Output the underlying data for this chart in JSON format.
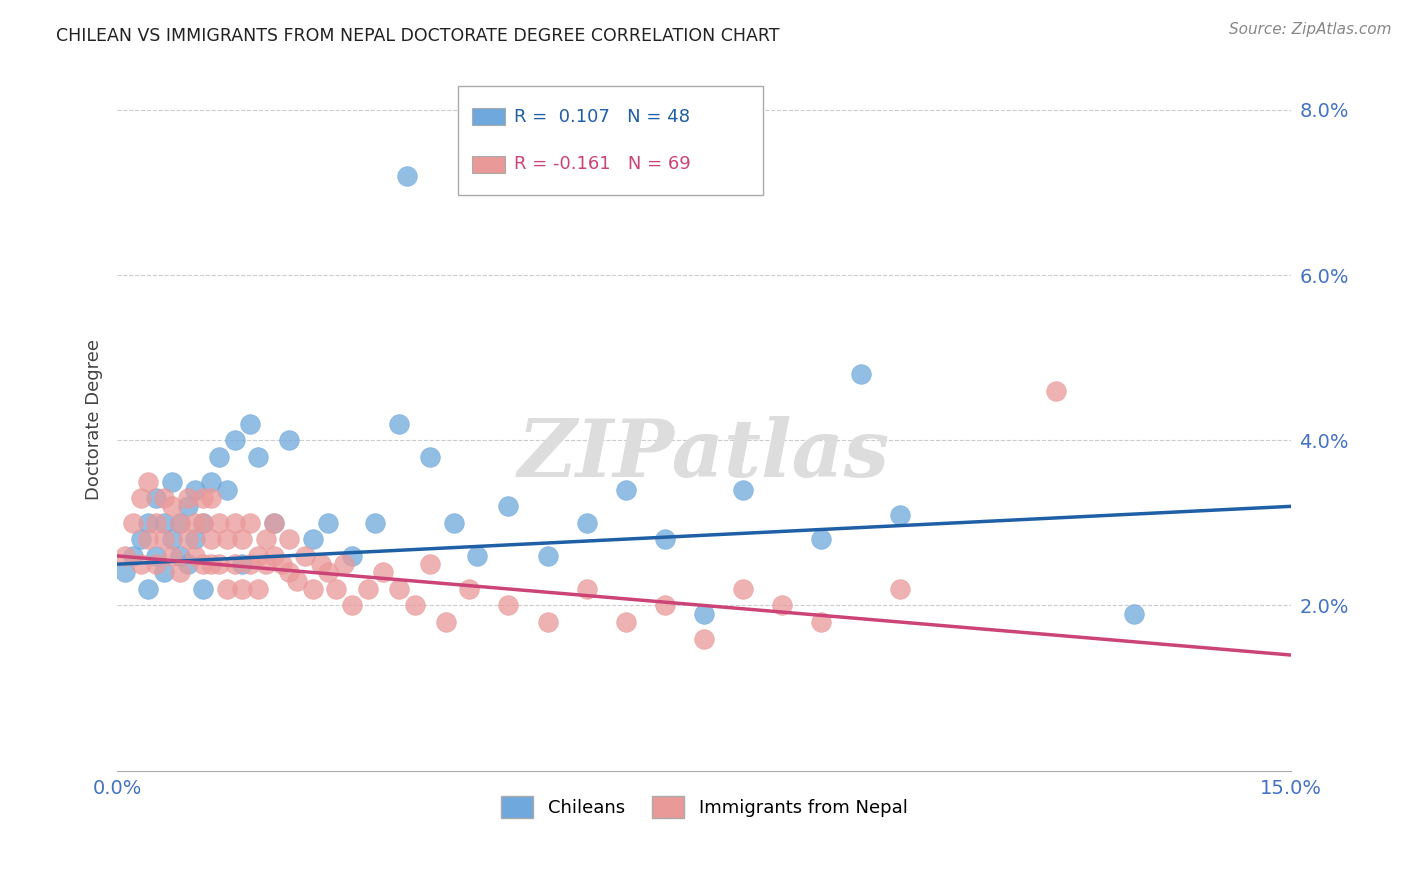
{
  "title": "CHILEAN VS IMMIGRANTS FROM NEPAL DOCTORATE DEGREE CORRELATION CHART",
  "source": "Source: ZipAtlas.com",
  "ylabel": "Doctorate Degree",
  "xlim": [
    0.0,
    0.15
  ],
  "ylim": [
    0.0,
    0.085
  ],
  "xticks": [
    0.0,
    0.15
  ],
  "yticks": [
    0.02,
    0.04,
    0.06,
    0.08
  ],
  "chilean_R": 0.107,
  "chilean_N": 48,
  "nepal_R": -0.161,
  "nepal_N": 69,
  "chilean_color": "#6fa8dc",
  "nepal_color": "#ea9999",
  "trend_chilean_color": "#1f5fa6",
  "trend_nepal_color": "#cc4477",
  "background_color": "#ffffff",
  "grid_color": "#cccccc",
  "tick_color": "#4472c4",
  "legend_box_color": "#dddddd",
  "chilean_x": [
    0.001,
    0.002,
    0.003,
    0.004,
    0.004,
    0.005,
    0.005,
    0.006,
    0.006,
    0.007,
    0.007,
    0.008,
    0.008,
    0.009,
    0.009,
    0.01,
    0.01,
    0.011,
    0.011,
    0.012,
    0.013,
    0.014,
    0.015,
    0.016,
    0.017,
    0.018,
    0.02,
    0.022,
    0.025,
    0.027,
    0.03,
    0.033,
    0.036,
    0.037,
    0.04,
    0.043,
    0.046,
    0.05,
    0.055,
    0.06,
    0.065,
    0.07,
    0.075,
    0.08,
    0.09,
    0.095,
    0.1,
    0.13
  ],
  "chilean_y": [
    0.024,
    0.026,
    0.028,
    0.03,
    0.022,
    0.033,
    0.026,
    0.03,
    0.024,
    0.035,
    0.028,
    0.026,
    0.03,
    0.025,
    0.032,
    0.034,
    0.028,
    0.03,
    0.022,
    0.035,
    0.038,
    0.034,
    0.04,
    0.025,
    0.042,
    0.038,
    0.03,
    0.04,
    0.028,
    0.03,
    0.026,
    0.03,
    0.042,
    0.072,
    0.038,
    0.03,
    0.026,
    0.032,
    0.026,
    0.03,
    0.034,
    0.028,
    0.019,
    0.034,
    0.028,
    0.048,
    0.031,
    0.019
  ],
  "nepal_x": [
    0.001,
    0.002,
    0.003,
    0.003,
    0.004,
    0.004,
    0.005,
    0.005,
    0.006,
    0.006,
    0.007,
    0.007,
    0.008,
    0.008,
    0.009,
    0.009,
    0.01,
    0.01,
    0.011,
    0.011,
    0.011,
    0.012,
    0.012,
    0.012,
    0.013,
    0.013,
    0.014,
    0.014,
    0.015,
    0.015,
    0.016,
    0.016,
    0.017,
    0.017,
    0.018,
    0.018,
    0.019,
    0.019,
    0.02,
    0.02,
    0.021,
    0.022,
    0.022,
    0.023,
    0.024,
    0.025,
    0.026,
    0.027,
    0.028,
    0.029,
    0.03,
    0.032,
    0.034,
    0.036,
    0.038,
    0.04,
    0.042,
    0.045,
    0.05,
    0.055,
    0.06,
    0.065,
    0.07,
    0.075,
    0.08,
    0.085,
    0.09,
    0.1,
    0.12
  ],
  "nepal_y": [
    0.026,
    0.03,
    0.025,
    0.033,
    0.028,
    0.035,
    0.03,
    0.025,
    0.033,
    0.028,
    0.032,
    0.026,
    0.03,
    0.024,
    0.028,
    0.033,
    0.03,
    0.026,
    0.03,
    0.025,
    0.033,
    0.028,
    0.025,
    0.033,
    0.03,
    0.025,
    0.028,
    0.022,
    0.03,
    0.025,
    0.028,
    0.022,
    0.03,
    0.025,
    0.026,
    0.022,
    0.028,
    0.025,
    0.03,
    0.026,
    0.025,
    0.024,
    0.028,
    0.023,
    0.026,
    0.022,
    0.025,
    0.024,
    0.022,
    0.025,
    0.02,
    0.022,
    0.024,
    0.022,
    0.02,
    0.025,
    0.018,
    0.022,
    0.02,
    0.018,
    0.022,
    0.018,
    0.02,
    0.016,
    0.022,
    0.02,
    0.018,
    0.022,
    0.046
  ],
  "trend_chilean_x0": 0.0,
  "trend_chilean_x1": 0.15,
  "trend_chilean_y0": 0.025,
  "trend_chilean_y1": 0.032,
  "trend_nepal_x0": 0.0,
  "trend_nepal_x1": 0.15,
  "trend_nepal_y0": 0.026,
  "trend_nepal_y1": 0.014
}
